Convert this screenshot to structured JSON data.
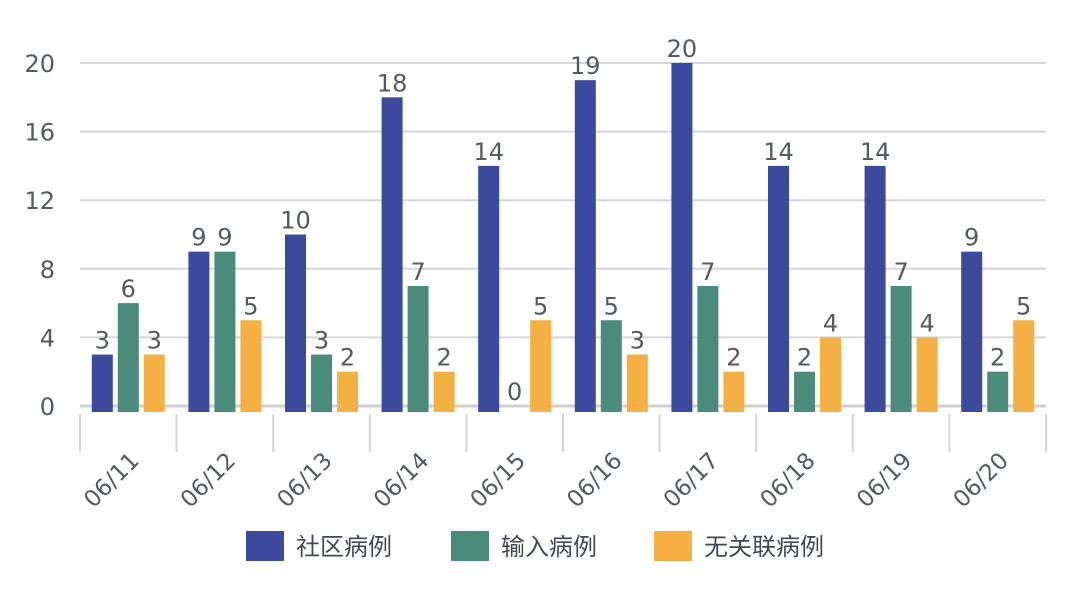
{
  "chart_data": {
    "type": "bar",
    "categories": [
      "06/11",
      "06/12",
      "06/13",
      "06/14",
      "06/15",
      "06/16",
      "06/17",
      "06/18",
      "06/19",
      "06/20"
    ],
    "series": [
      {
        "name": "社区病例",
        "color": "#3b4a9c",
        "values": [
          3,
          9,
          10,
          18,
          14,
          19,
          20,
          14,
          14,
          9
        ]
      },
      {
        "name": "输入病例",
        "color": "#4a8c79",
        "values": [
          6,
          9,
          3,
          7,
          0,
          5,
          7,
          2,
          7,
          2
        ]
      },
      {
        "name": "无关联病例",
        "color": "#f4b042",
        "values": [
          3,
          5,
          2,
          2,
          5,
          3,
          2,
          4,
          4,
          5
        ]
      }
    ],
    "title": "",
    "xlabel": "",
    "ylabel": "",
    "ylim": [
      0,
      20
    ],
    "yticks": [
      0,
      4,
      8,
      12,
      16,
      20
    ],
    "grid": true,
    "legend_position": "bottom",
    "data_labels": true,
    "x_tick_rotation_deg": -45
  }
}
